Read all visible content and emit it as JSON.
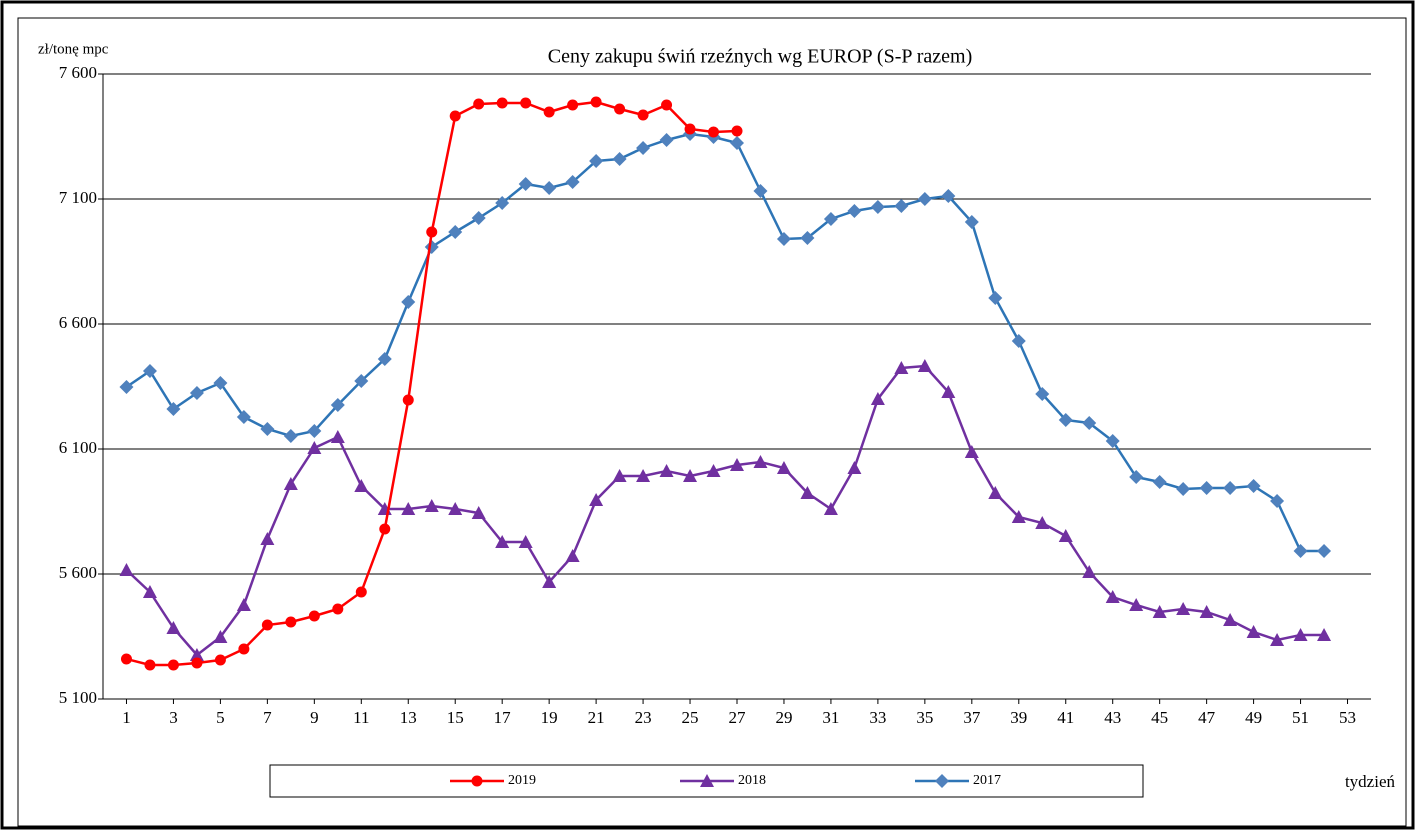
{
  "chart_data": {
    "type": "line",
    "title": "Ceny zakupu świń rzeźnych wg EUROP (S-P razem)",
    "y_label": "zł/tonę  mpc",
    "x_label": "tydzień",
    "x": [
      1,
      2,
      3,
      4,
      5,
      6,
      7,
      8,
      9,
      10,
      11,
      12,
      13,
      14,
      15,
      16,
      17,
      18,
      19,
      20,
      21,
      22,
      23,
      24,
      25,
      26,
      27,
      28,
      29,
      30,
      31,
      32,
      33,
      34,
      35,
      36,
      37,
      38,
      39,
      40,
      41,
      42,
      43,
      44,
      45,
      46,
      47,
      48,
      49,
      50,
      51,
      52
    ],
    "xlim": [
      0,
      54
    ],
    "xticks": [
      1,
      3,
      5,
      7,
      9,
      11,
      13,
      15,
      17,
      19,
      21,
      23,
      25,
      27,
      29,
      31,
      33,
      35,
      37,
      39,
      41,
      43,
      45,
      47,
      49,
      51,
      53
    ],
    "ylim": [
      5100,
      7600
    ],
    "yticks": [
      {
        "value": 5100,
        "label": "5 100"
      },
      {
        "value": 5600,
        "label": "5 600"
      },
      {
        "value": 6100,
        "label": "6 100"
      },
      {
        "value": 6600,
        "label": "6 600"
      },
      {
        "value": 7100,
        "label": "7 100"
      },
      {
        "value": 7600,
        "label": "7 600"
      }
    ],
    "grid": true,
    "series": [
      {
        "name": "2019",
        "color": "#ff0000",
        "marker": "circle",
        "values": [
          5260,
          5236,
          5236,
          5244,
          5256,
          5300,
          5396,
          5408,
          5432,
          5460,
          5528,
          5780,
          6296,
          6968,
          7432,
          7480,
          7484,
          7484,
          7448,
          7476,
          7488,
          7460,
          7436,
          7476,
          7380,
          7368,
          7372,
          null,
          null,
          null,
          null,
          null,
          null,
          null,
          null,
          null,
          null,
          null,
          null,
          null,
          null,
          null,
          null,
          null,
          null,
          null,
          null,
          null,
          null,
          null,
          null,
          null
        ]
      },
      {
        "name": "2018",
        "color": "#7030a0",
        "marker": "triangle",
        "values": [
          5616,
          5528,
          5384,
          5276,
          5348,
          5476,
          5740,
          5960,
          6104,
          6148,
          5952,
          5860,
          5860,
          5872,
          5860,
          5844,
          5728,
          5728,
          5568,
          5672,
          5896,
          5992,
          5992,
          6012,
          5992,
          6012,
          6036,
          6048,
          6024,
          5924,
          5860,
          6024,
          6300,
          6424,
          6432,
          6328,
          6088,
          5924,
          5828,
          5804,
          5752,
          5608,
          5508,
          5476,
          5448,
          5460,
          5448,
          5416,
          5368,
          5336,
          5356,
          5356
        ]
      },
      {
        "name": "2017",
        "color": "#2e75b6",
        "marker": "diamond",
        "values": [
          6348,
          6412,
          6260,
          6324,
          6364,
          6228,
          6180,
          6152,
          6172,
          6276,
          6372,
          6460,
          6688,
          6908,
          6968,
          7024,
          7084,
          7160,
          7144,
          7168,
          7252,
          7260,
          7304,
          7336,
          7360,
          7348,
          7324,
          7132,
          6940,
          6944,
          7020,
          7052,
          7068,
          7072,
          7100,
          7112,
          7008,
          6704,
          6532,
          6320,
          6216,
          6204,
          6132,
          5988,
          5968,
          5940,
          5944,
          5944,
          5952,
          5892,
          5692,
          5692
        ]
      }
    ]
  }
}
